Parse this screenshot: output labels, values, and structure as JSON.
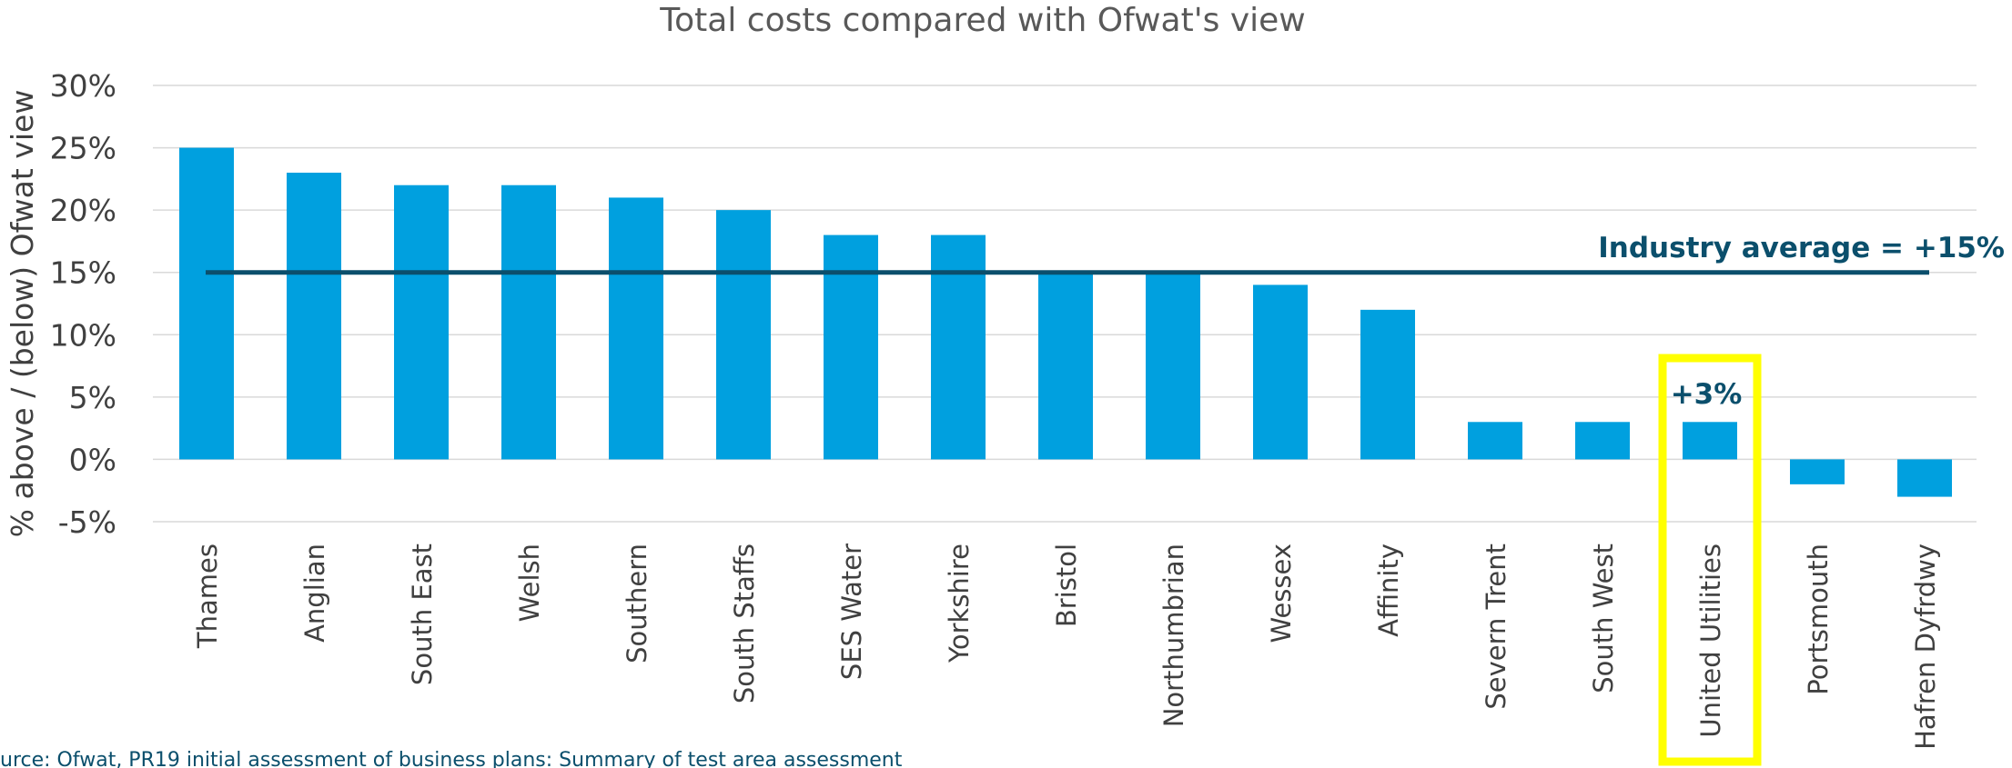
{
  "chart_data": {
    "type": "bar",
    "title": "Total costs compared with Ofwat's view",
    "ylabel": "% above / (below) Ofwat view",
    "xlabel": "",
    "ylim": [
      -5,
      30
    ],
    "yticks": [
      30,
      25,
      20,
      15,
      10,
      5,
      0,
      -5
    ],
    "ytick_labels": [
      "30%",
      "25%",
      "20%",
      "15%",
      "10%",
      "5%",
      "0%",
      "-5%"
    ],
    "grid": true,
    "categories": [
      "Thames",
      "Anglian",
      "South East",
      "Welsh",
      "Southern",
      "South Staffs",
      "SES Water",
      "Yorkshire",
      "Bristol",
      "Northumbrian",
      "Wessex",
      "Affinity",
      "Severn Trent",
      "South West",
      "United Utilities",
      "Portsmouth",
      "Hafren Dyfrdwy"
    ],
    "values": [
      25,
      23,
      22,
      22,
      21,
      20,
      18,
      18,
      15,
      15,
      14,
      12,
      3,
      3,
      3,
      -2,
      -3
    ],
    "bar_color": "#00A0DF",
    "average_line": {
      "value": 15,
      "label": "Industry average = +15%",
      "color": "#0B4F6C"
    },
    "highlight": {
      "category": "United Utilities",
      "label": "+3%",
      "box_color": "#FFFF00",
      "label_color": "#0B4F6C"
    },
    "source": "urce: Ofwat, PR19 initial assessment of business plans: Summary of test area assessment"
  }
}
